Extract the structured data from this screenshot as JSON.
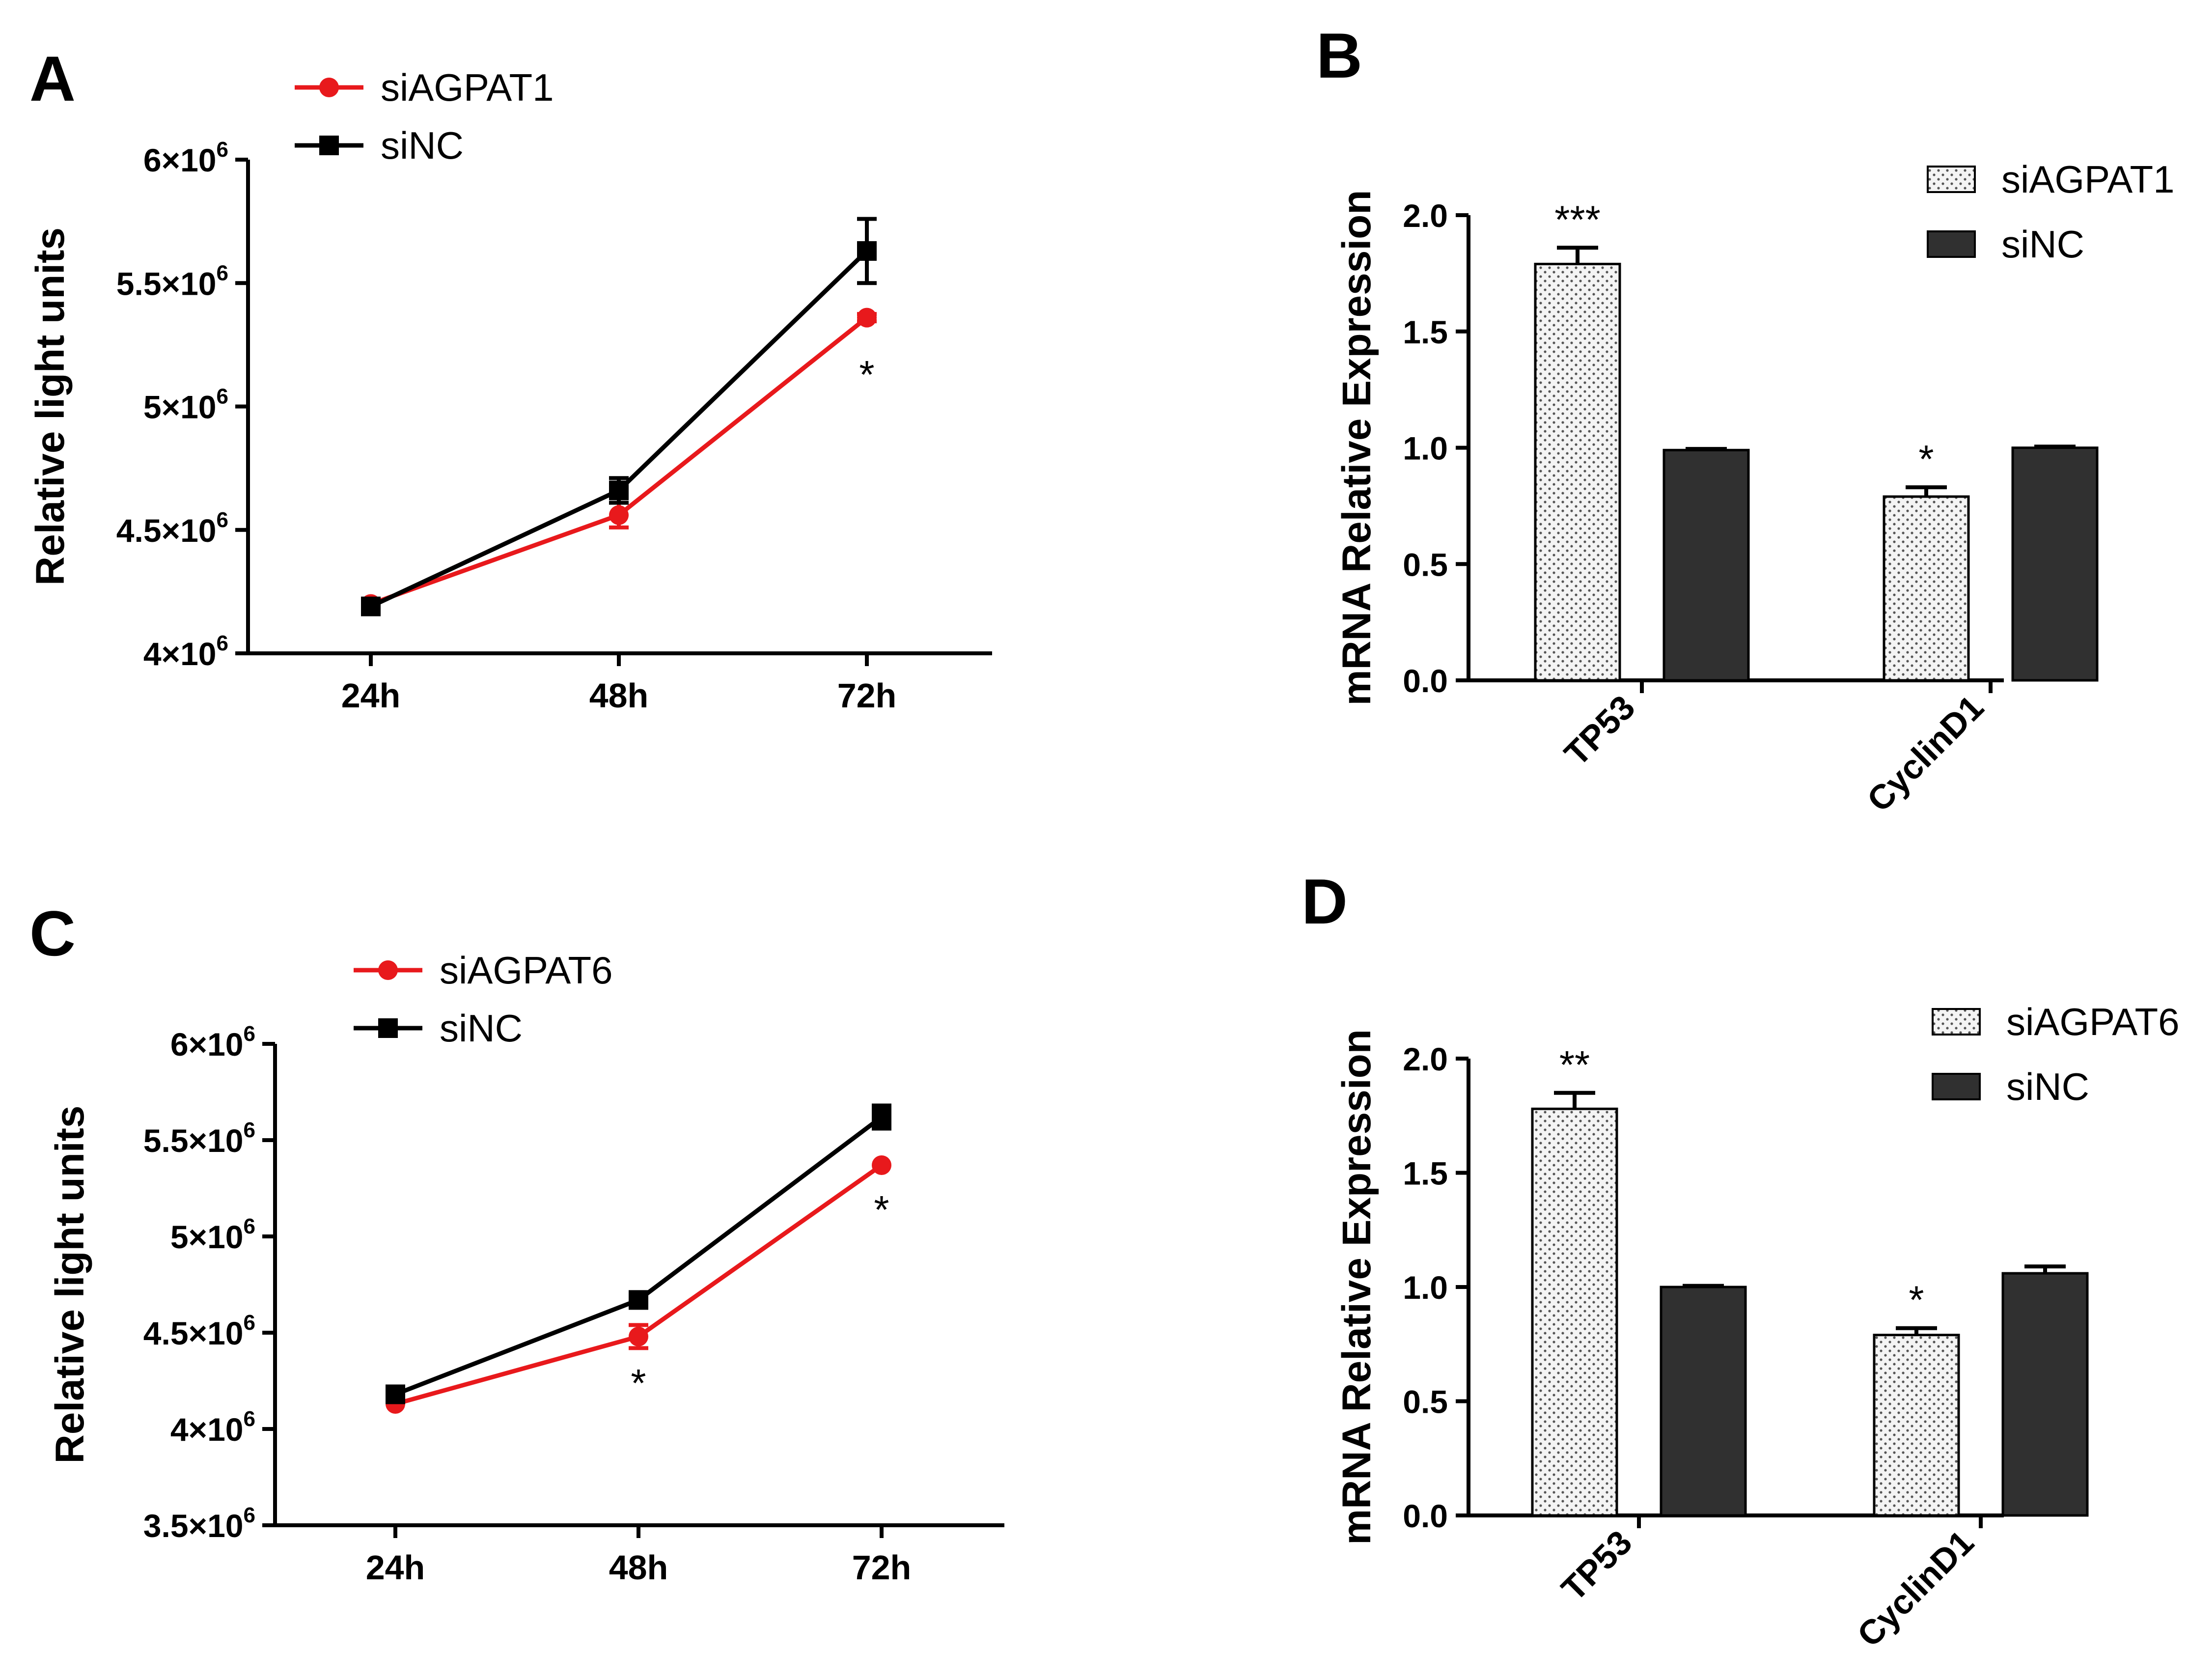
{
  "colors": {
    "red": "#e8191c",
    "black": "#000000",
    "dark_bar": "#303030",
    "dotted_fill": "#f4f4f4"
  },
  "chart_data": [
    {
      "panel": "A",
      "type": "line",
      "categories": [
        "24h",
        "48h",
        "72h"
      ],
      "ylabel": "Relative light units",
      "ylim": [
        4000000,
        6000000
      ],
      "ytick_labels": [
        {
          "base": "4×10",
          "exp": "6"
        },
        {
          "base": "4.5×10",
          "exp": "6"
        },
        {
          "base": "5×10",
          "exp": "6"
        },
        {
          "base": "5.5×10",
          "exp": "6"
        },
        {
          "base": "6×10",
          "exp": "6"
        }
      ],
      "yticks": [
        4000000,
        4500000,
        5000000,
        5500000,
        6000000
      ],
      "series": [
        {
          "name": "siAGPAT1",
          "color": "#e8191c",
          "marker": "circle",
          "values": [
            4200000,
            4560000,
            5360000
          ],
          "errors": [
            10000,
            50000,
            15000
          ]
        },
        {
          "name": "siNC",
          "color": "#000000",
          "marker": "square",
          "values": [
            4190000,
            4660000,
            5630000
          ],
          "errors": [
            20000,
            50000,
            130000
          ]
        }
      ],
      "annotations": [
        {
          "category_index": 2,
          "y": 5130000,
          "text": "*"
        }
      ]
    },
    {
      "panel": "B",
      "type": "bar",
      "categories": [
        "TP53",
        "CyclinD1"
      ],
      "ylabel": "mRNA Relative Expression",
      "ylim": [
        0,
        2.0
      ],
      "yticks": [
        0.0,
        0.5,
        1.0,
        1.5,
        2.0
      ],
      "ytick_labels": [
        "0.0",
        "0.5",
        "1.0",
        "1.5",
        "2.0"
      ],
      "series": [
        {
          "name": "siAGPAT1",
          "pattern": "dotted",
          "values": [
            1.79,
            0.79
          ],
          "errors": [
            0.07,
            0.04
          ]
        },
        {
          "name": "siNC",
          "pattern": "solid",
          "values": [
            0.99,
            1.0
          ],
          "errors": [
            0.005,
            0.005
          ]
        }
      ],
      "annotations": [
        {
          "category_index": 0,
          "series_index": 0,
          "text": "***"
        },
        {
          "category_index": 1,
          "series_index": 0,
          "text": "*"
        }
      ]
    },
    {
      "panel": "C",
      "type": "line",
      "categories": [
        "24h",
        "48h",
        "72h"
      ],
      "ylabel": "Relative light units",
      "ylim": [
        3500000,
        6000000
      ],
      "ytick_labels": [
        {
          "base": "3.5×10",
          "exp": "6"
        },
        {
          "base": "4×10",
          "exp": "6"
        },
        {
          "base": "4.5×10",
          "exp": "6"
        },
        {
          "base": "5×10",
          "exp": "6"
        },
        {
          "base": "5.5×10",
          "exp": "6"
        },
        {
          "base": "6×10",
          "exp": "6"
        }
      ],
      "yticks": [
        3500000,
        4000000,
        4500000,
        5000000,
        5500000,
        6000000
      ],
      "series": [
        {
          "name": "siAGPAT6",
          "color": "#e8191c",
          "marker": "circle",
          "values": [
            4130000,
            4480000,
            5370000
          ],
          "errors": [
            10000,
            60000,
            15000
          ]
        },
        {
          "name": "siNC",
          "color": "#000000",
          "marker": "square",
          "values": [
            4180000,
            4670000,
            5620000
          ],
          "errors": [
            15000,
            40000,
            60000
          ]
        }
      ],
      "annotations": [
        {
          "category_index": 1,
          "y": 4240000,
          "text": "*"
        },
        {
          "category_index": 2,
          "y": 5140000,
          "text": "*"
        }
      ]
    },
    {
      "panel": "D",
      "type": "bar",
      "categories": [
        "TP53",
        "CyclinD1"
      ],
      "ylabel": "mRNA Relative Expression",
      "ylim": [
        0,
        2.0
      ],
      "yticks": [
        0.0,
        0.5,
        1.0,
        1.5,
        2.0
      ],
      "ytick_labels": [
        "0.0",
        "0.5",
        "1.0",
        "1.5",
        "2.0"
      ],
      "series": [
        {
          "name": "siAGPAT6",
          "pattern": "dotted",
          "values": [
            1.78,
            0.79
          ],
          "errors": [
            0.07,
            0.03
          ]
        },
        {
          "name": "siNC",
          "pattern": "solid",
          "values": [
            1.0,
            1.06
          ],
          "errors": [
            0.005,
            0.03
          ]
        }
      ],
      "annotations": [
        {
          "category_index": 0,
          "series_index": 0,
          "text": "**"
        },
        {
          "category_index": 1,
          "series_index": 0,
          "text": "*"
        }
      ]
    }
  ]
}
